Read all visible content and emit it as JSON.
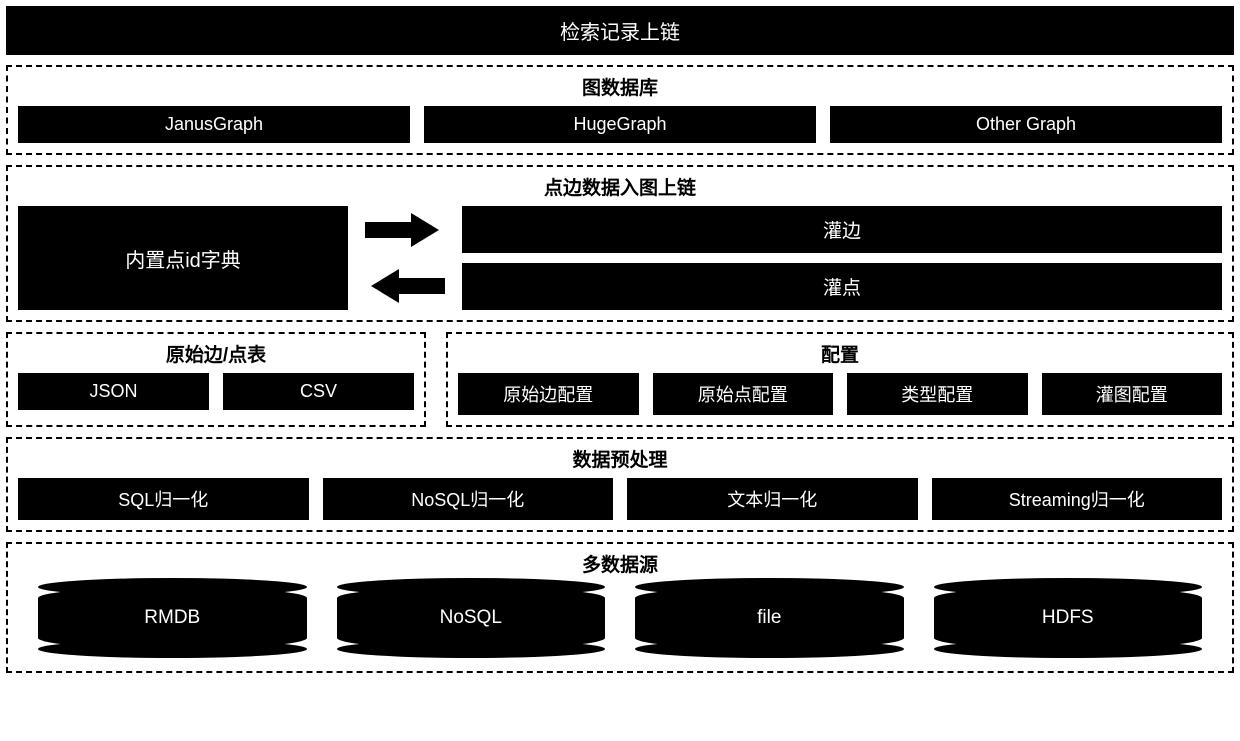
{
  "diagram": {
    "type": "layered-architecture",
    "background_color": "#ffffff",
    "block_bg": "#000000",
    "block_fg": "#ffffff",
    "border_color": "#000000",
    "font_family": "Microsoft YaHei",
    "title_fontsize": 19,
    "block_fontsize": 18
  },
  "top_bar": {
    "label": "检索记录上链"
  },
  "graph_db": {
    "title": "图数据库",
    "items": [
      "JanusGraph",
      "HugeGraph",
      "Other Graph"
    ]
  },
  "chain": {
    "title": "点边数据入图上链",
    "left_block": "内置点id字典",
    "right_blocks": [
      "灌边",
      "灌点"
    ],
    "arrows": [
      "right",
      "left"
    ]
  },
  "raw_tables": {
    "title": "原始边/点表",
    "items": [
      "JSON",
      "CSV"
    ]
  },
  "config": {
    "title": "配置",
    "items": [
      "原始边配置",
      "原始点配置",
      "类型配置",
      "灌图配置"
    ]
  },
  "preprocess": {
    "title": "数据预处理",
    "items": [
      "SQL归一化",
      "NoSQL归一化",
      "文本归一化",
      "Streaming归一化"
    ]
  },
  "sources": {
    "title": "多数据源",
    "border_style": "dash-dot",
    "items": [
      "RMDB",
      "NoSQL",
      "file",
      "HDFS"
    ],
    "shape": "cylinder"
  }
}
